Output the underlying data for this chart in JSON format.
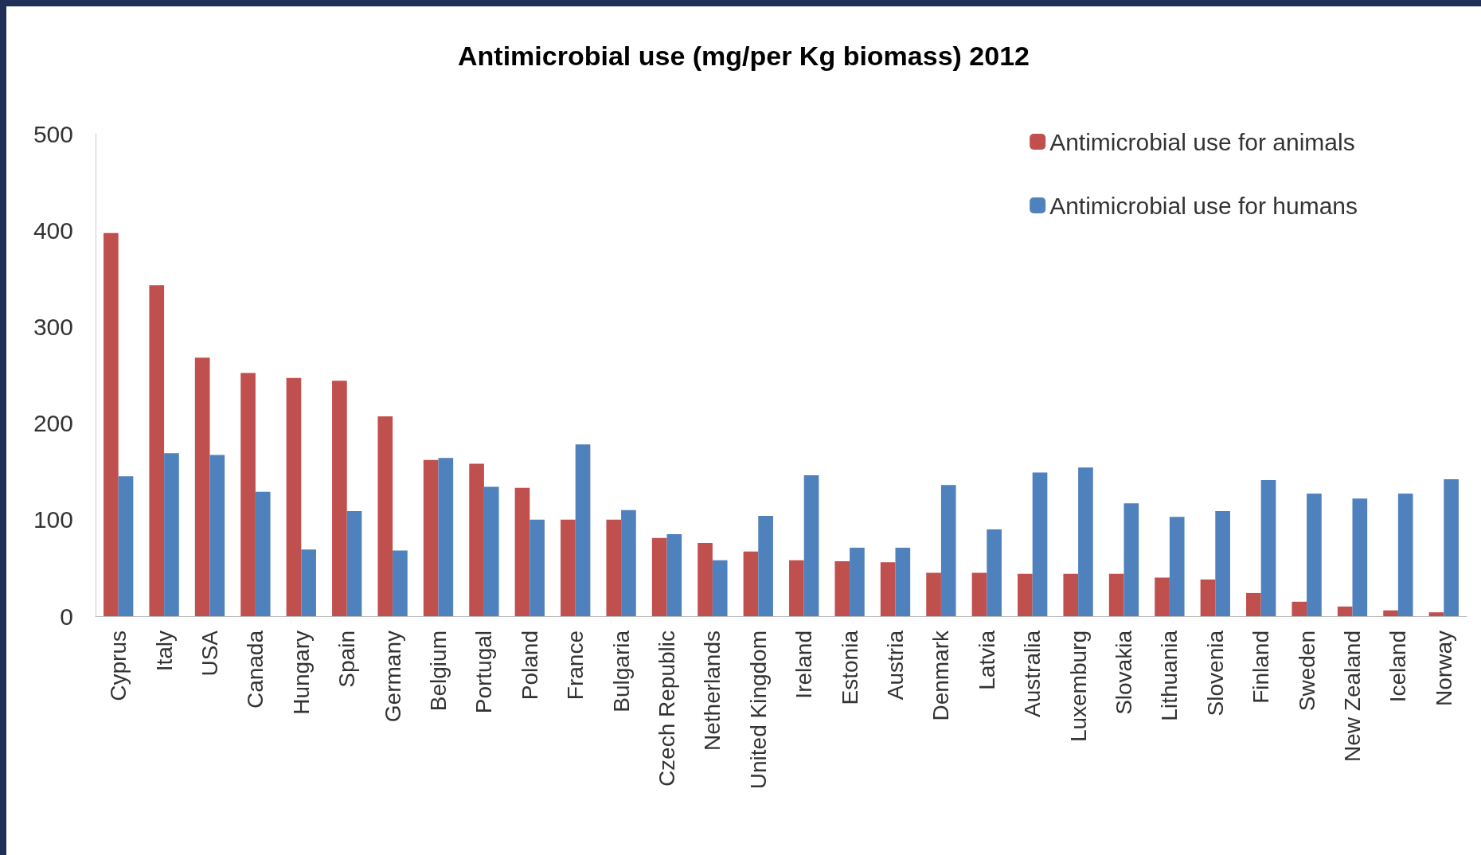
{
  "chart_data": {
    "type": "bar",
    "title": "Antimicrobial use (mg/per Kg biomass) 2012",
    "categories": [
      "Cyprus",
      "Italy",
      "USA",
      "Canada",
      "Hungary",
      "Spain",
      "Germany",
      "Belgium",
      "Portugal",
      "Poland",
      "France",
      "Bulgaria",
      "Czech Republic",
      "Netherlands",
      "United Kingdom",
      "Ireland",
      "Estonia",
      "Austria",
      "Denmark",
      "Latvia",
      "Australia",
      "Luxemburg",
      "Slovakia",
      "Lithuania",
      "Slovenia",
      "Finland",
      "Sweden",
      "New Zealand",
      "Iceland",
      "Norway"
    ],
    "series": [
      {
        "name": "Antimicrobial use for animals",
        "color": "#c0504d",
        "values": [
          397,
          343,
          268,
          252,
          247,
          244,
          207,
          162,
          158,
          133,
          100,
          100,
          81,
          76,
          67,
          58,
          57,
          56,
          45,
          45,
          44,
          44,
          44,
          40,
          38,
          24,
          15,
          10,
          6,
          4
        ]
      },
      {
        "name": "Antimicrobial use for humans",
        "color": "#4f81bd",
        "values": [
          145,
          169,
          167,
          129,
          69,
          109,
          68,
          164,
          134,
          100,
          178,
          110,
          85,
          58,
          104,
          146,
          71,
          71,
          136,
          90,
          149,
          154,
          117,
          103,
          109,
          141,
          127,
          122,
          127,
          142
        ]
      }
    ],
    "ylim": [
      0,
      500
    ],
    "yticks": [
      0,
      100,
      200,
      300,
      400,
      500
    ],
    "grid": false,
    "legend": "top right"
  }
}
